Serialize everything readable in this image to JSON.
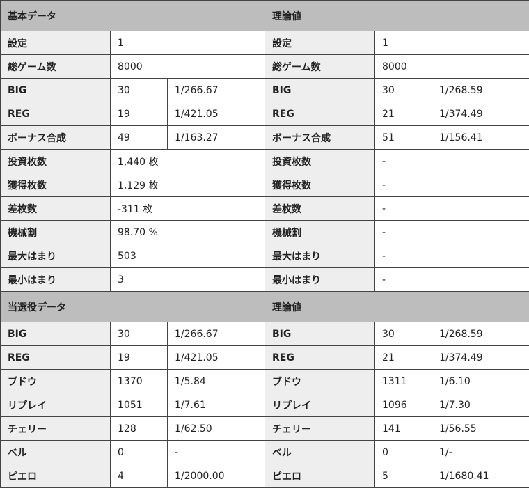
{
  "sections": [
    {
      "left_title": "基本データ",
      "right_title": "理論値",
      "rows": [
        {
          "label": "設定",
          "left": [
            "1"
          ],
          "right": [
            "1"
          ]
        },
        {
          "label": "総ゲーム数",
          "left": [
            "8000"
          ],
          "right": [
            "8000"
          ]
        },
        {
          "label": "BIG",
          "left": [
            "30",
            "1/266.67"
          ],
          "right": [
            "30",
            "1/268.59"
          ]
        },
        {
          "label": "REG",
          "left": [
            "19",
            "1/421.05"
          ],
          "right": [
            "21",
            "1/374.49"
          ]
        },
        {
          "label": "ボーナス合成",
          "left": [
            "49",
            "1/163.27"
          ],
          "right": [
            "51",
            "1/156.41"
          ]
        },
        {
          "label": "投資枚数",
          "left": [
            "1,440 枚"
          ],
          "right": [
            "-"
          ]
        },
        {
          "label": "獲得枚数",
          "left": [
            "1,129 枚"
          ],
          "right": [
            "-"
          ]
        },
        {
          "label": "差枚数",
          "left": [
            "-311 枚"
          ],
          "right": [
            "-"
          ]
        },
        {
          "label": "機械割",
          "left": [
            "98.70 %"
          ],
          "right": [
            "-"
          ]
        },
        {
          "label": "最大はまり",
          "left": [
            "503"
          ],
          "right": [
            "-"
          ]
        },
        {
          "label": "最小はまり",
          "left": [
            "3"
          ],
          "right": [
            "-"
          ]
        }
      ]
    },
    {
      "left_title": "当選役データ",
      "right_title": "理論値",
      "rows": [
        {
          "label": "BIG",
          "left": [
            "30",
            "1/266.67"
          ],
          "right": [
            "30",
            "1/268.59"
          ]
        },
        {
          "label": "REG",
          "left": [
            "19",
            "1/421.05"
          ],
          "right": [
            "21",
            "1/374.49"
          ]
        },
        {
          "label": "ブドウ",
          "left": [
            "1370",
            "1/5.84"
          ],
          "right": [
            "1311",
            "1/6.10"
          ]
        },
        {
          "label": "リプレイ",
          "left": [
            "1051",
            "1/7.61"
          ],
          "right": [
            "1096",
            "1/7.30"
          ]
        },
        {
          "label": "チェリー",
          "left": [
            "128",
            "1/62.50"
          ],
          "right": [
            "141",
            "1/56.55"
          ]
        },
        {
          "label": "ベル",
          "left": [
            "0",
            "-"
          ],
          "right": [
            "0",
            "1/-"
          ]
        },
        {
          "label": "ピエロ",
          "left": [
            "4",
            "1/2000.00"
          ],
          "right": [
            "5",
            "1/1680.41"
          ]
        }
      ]
    }
  ]
}
